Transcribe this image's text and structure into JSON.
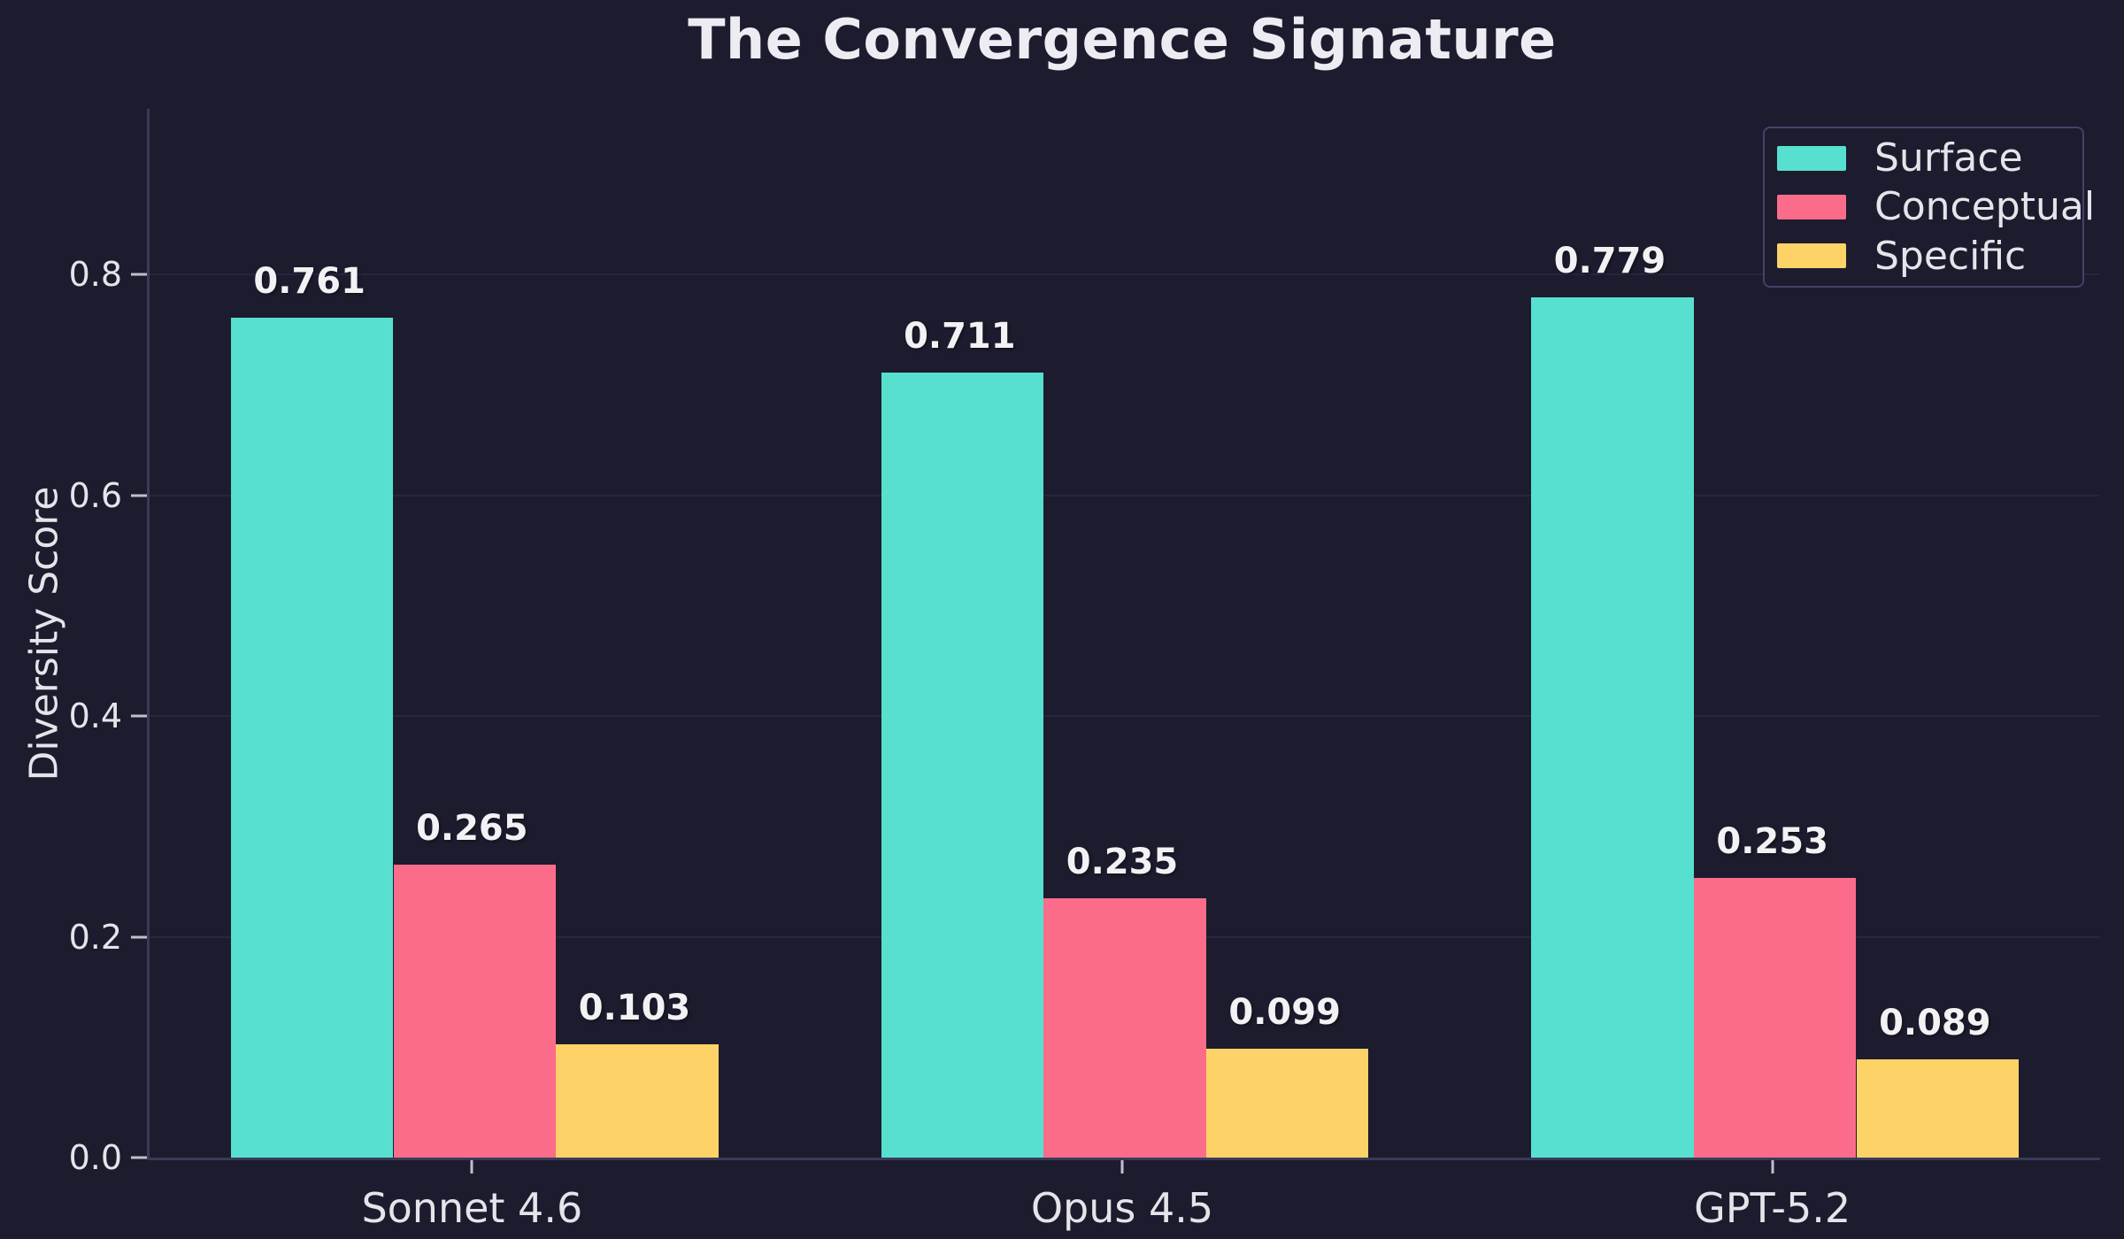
{
  "title": "The Convergence Signature",
  "axes": {
    "ylabel": "Diversity Score",
    "xlabel": ""
  },
  "colors": {
    "background": "#1c1c2e",
    "grid": "#26263e",
    "spine": "#3a3a5a",
    "title_text": "#ececf2",
    "tick_text": "#e4e4ea",
    "value_text": "#f2f2f5",
    "tick_mark": "#c0c0cc",
    "legend_border": "#42426a"
  },
  "legend": {
    "position": "top-right",
    "items": [
      "Surface",
      "Conceptual",
      "Specific"
    ]
  },
  "chart_data": {
    "type": "bar",
    "categories": [
      "Sonnet 4.6",
      "Opus 4.5",
      "GPT-5.2"
    ],
    "series": [
      {
        "name": "Surface",
        "color": "#57e0cf",
        "values": [
          0.761,
          0.711,
          0.779
        ]
      },
      {
        "name": "Conceptual",
        "color": "#fb6c8b",
        "values": [
          0.265,
          0.235,
          0.253
        ]
      },
      {
        "name": "Specific",
        "color": "#fdd368",
        "values": [
          0.103,
          0.099,
          0.089
        ]
      }
    ],
    "title": "The Convergence Signature",
    "xlabel": "",
    "ylabel": "Diversity Score",
    "ylim": [
      0,
      0.95
    ],
    "yticks": [
      0.0,
      0.2,
      0.4,
      0.6,
      0.8
    ],
    "grid": true,
    "legend_position": "upper right",
    "bar_value_labels": true,
    "value_label_format": "3-decimals"
  }
}
